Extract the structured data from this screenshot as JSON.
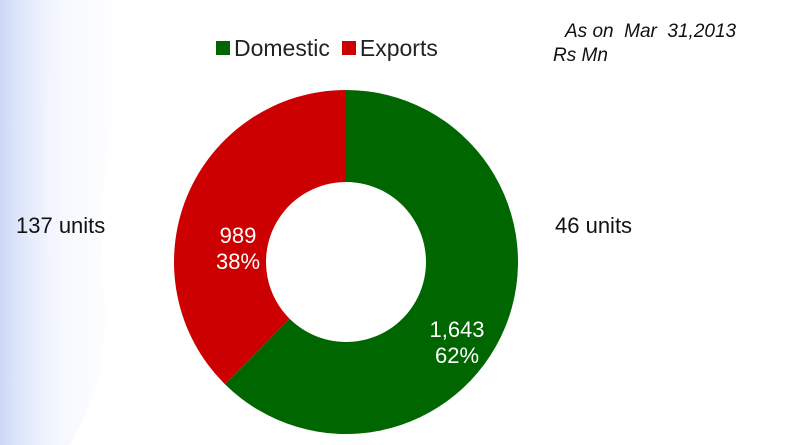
{
  "header": {
    "as_on": "As on  Mar  31,2013",
    "unit": "Rs Mn"
  },
  "side_labels": {
    "left": "137 units",
    "right": "46 units"
  },
  "chart_data": {
    "type": "pie",
    "donut": true,
    "title": "",
    "legend_position": "top",
    "categories": [
      "Domestic",
      "Exports"
    ],
    "values": [
      1643,
      989
    ],
    "value_labels": [
      "1,643",
      "989"
    ],
    "percent_labels": [
      "62%",
      "38%"
    ],
    "colors": [
      "#006600",
      "#CC0000"
    ],
    "label_color": "#ffffff"
  }
}
